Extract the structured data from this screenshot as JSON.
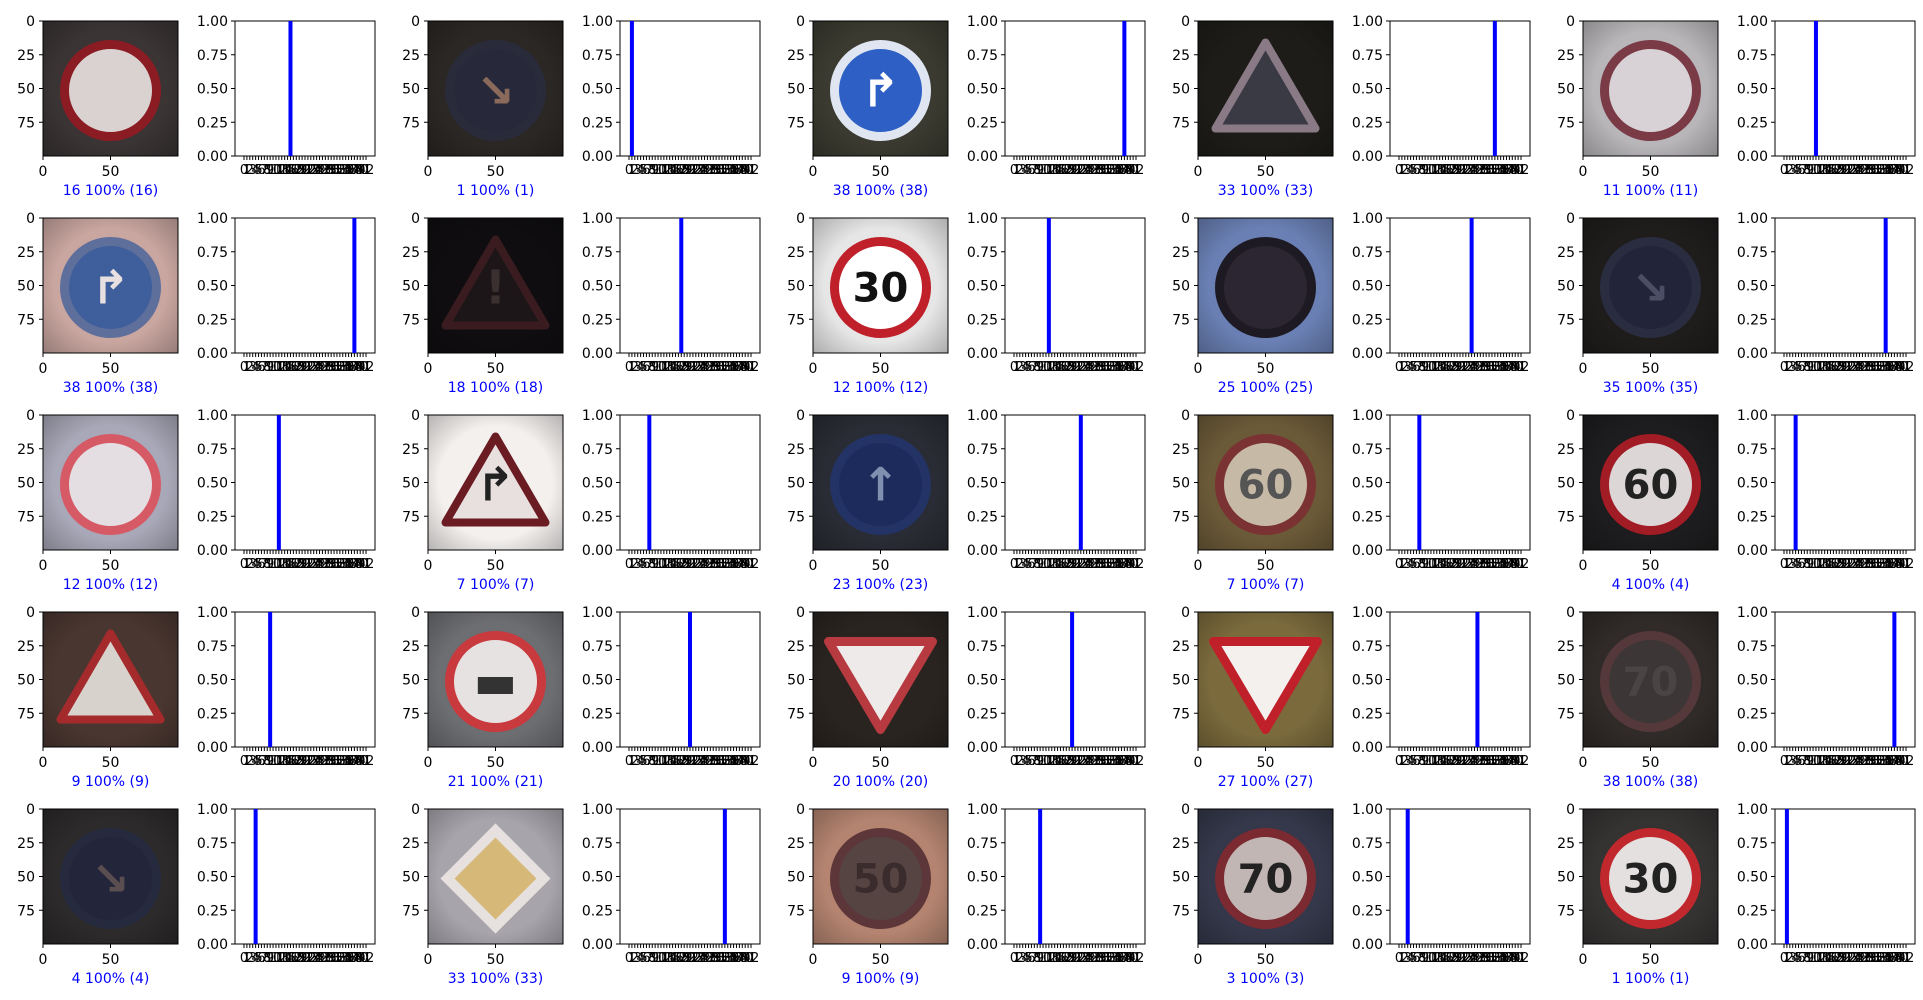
{
  "figure": {
    "rows": 5,
    "cols": 5
  },
  "chart_data": {
    "type": "bar",
    "num_classes": 43,
    "image_axes": {
      "x_ticks": [
        0,
        50
      ],
      "y_ticks": [
        0,
        25,
        50,
        75
      ],
      "xlim": [
        0,
        100
      ],
      "ylim": [
        100,
        0
      ]
    },
    "bar_axes": {
      "ylim": [
        0,
        1
      ],
      "y_ticks": [
        "0.00",
        "0.25",
        "0.50",
        "0.75",
        "1.00"
      ],
      "x_ticks": [
        0,
        1,
        2,
        3,
        4,
        5,
        6,
        7,
        8,
        9,
        10,
        11,
        12,
        13,
        14,
        15,
        16,
        17,
        18,
        19,
        20,
        21,
        22,
        23,
        24,
        25,
        26,
        27,
        28,
        29,
        30,
        31,
        32,
        33,
        34,
        35,
        36,
        37,
        38,
        39,
        40,
        41,
        42
      ],
      "bar_color": "#0000ff"
    },
    "panels": [
      {
        "predicted": 16,
        "true": 16,
        "confidence": 1.0,
        "caption": "16 100% (16)",
        "sign": {
          "shape": "circle",
          "bg": "#3a3434",
          "fill": "#d9d2d0",
          "border": "#8c1c24",
          "symbol": "",
          "symbol_color": "#777"
        }
      },
      {
        "predicted": 1,
        "true": 1,
        "confidence": 1.0,
        "caption": "1 100% (1)",
        "sign": {
          "shape": "circle",
          "bg": "#2b2724",
          "fill": "#27293a",
          "border": "#2a2b3a",
          "symbol": "↘",
          "symbol_color": "#8a6a5a"
        }
      },
      {
        "predicted": 38,
        "true": 38,
        "confidence": 1.0,
        "caption": "38 100% (38)",
        "sign": {
          "shape": "circle",
          "bg": "#3a3a30",
          "fill": "#2d5fc4",
          "border": "#dfe6f2",
          "symbol": "↱",
          "symbol_color": "#ffffff"
        }
      },
      {
        "predicted": 33,
        "true": 33,
        "confidence": 1.0,
        "caption": "33 100% (33)",
        "sign": {
          "shape": "triangle",
          "bg": "#1d1c18",
          "fill": "#3a3a44",
          "border": "#8a7a86",
          "symbol": "",
          "symbol_color": "#999"
        }
      },
      {
        "predicted": 11,
        "true": 11,
        "confidence": 1.0,
        "caption": "11 100% (11)",
        "sign": {
          "shape": "circle",
          "bg": "#b9b6ba",
          "fill": "#d8d2d6",
          "border": "#7a3a46",
          "symbol": "",
          "symbol_color": "#333"
        }
      },
      {
        "predicted": 38,
        "true": 38,
        "confidence": 1.0,
        "caption": "38 100% (38)",
        "sign": {
          "shape": "circle",
          "bg": "#c9a6a0",
          "fill": "#3f5f9c",
          "border": "#5f6f9c",
          "symbol": "↱",
          "symbol_color": "#e8e0e0"
        }
      },
      {
        "predicted": 18,
        "true": 18,
        "confidence": 1.0,
        "caption": "18 100% (18)",
        "sign": {
          "shape": "triangle",
          "bg": "#0f0d10",
          "fill": "#1c1618",
          "border": "#3a1c20",
          "symbol": "!",
          "symbol_color": "#3a3030"
        }
      },
      {
        "predicted": 12,
        "true": 12,
        "confidence": 1.0,
        "caption": "12 100% (12)",
        "sign": {
          "shape": "circle",
          "bg": "#e6e6e6",
          "fill": "#ffffff",
          "border": "#c0202a",
          "symbol": "30",
          "symbol_color": "#111111"
        }
      },
      {
        "predicted": 25,
        "true": 25,
        "confidence": 1.0,
        "caption": "25 100% (25)",
        "sign": {
          "shape": "circle",
          "bg": "#6a80b4",
          "fill": "#2c2632",
          "border": "#1e1a24",
          "symbol": "",
          "symbol_color": "#555"
        }
      },
      {
        "predicted": 35,
        "true": 35,
        "confidence": 1.0,
        "caption": "35 100% (35)",
        "sign": {
          "shape": "circle",
          "bg": "#1f1d1c",
          "fill": "#22253a",
          "border": "#2a2c40",
          "symbol": "↘",
          "symbol_color": "#4a4f66"
        }
      },
      {
        "predicted": 12,
        "true": 12,
        "confidence": 1.0,
        "caption": "12 100% (12)",
        "sign": {
          "shape": "circle",
          "bg": "#a8a8b8",
          "fill": "#e4dee2",
          "border": "#d65a66",
          "symbol": "",
          "symbol_color": "#999"
        }
      },
      {
        "predicted": 7,
        "true": 7,
        "confidence": 1.0,
        "caption": "7 100% (7)",
        "sign": {
          "shape": "triangle",
          "bg": "#f3f0ee",
          "fill": "#e8e0de",
          "border": "#6a1c22",
          "symbol": "↱",
          "symbol_color": "#222"
        }
      },
      {
        "predicted": 23,
        "true": 23,
        "confidence": 1.0,
        "caption": "23 100% (23)",
        "sign": {
          "shape": "circle",
          "bg": "#2a2c35",
          "fill": "#1d2b5c",
          "border": "#233366",
          "symbol": "↑",
          "symbol_color": "#7f8fb0"
        }
      },
      {
        "predicted": 7,
        "true": 7,
        "confidence": 1.0,
        "caption": "7 100% (7)",
        "sign": {
          "shape": "circle",
          "bg": "#6b5a38",
          "fill": "#c6b9a6",
          "border": "#7a3232",
          "symbol": "60",
          "symbol_color": "#555"
        }
      },
      {
        "predicted": 4,
        "true": 4,
        "confidence": 1.0,
        "caption": "4 100% (4)",
        "sign": {
          "shape": "circle",
          "bg": "#1d1c1e",
          "fill": "#ddd6d6",
          "border": "#a11c24",
          "symbol": "60",
          "symbol_color": "#222"
        }
      },
      {
        "predicted": 9,
        "true": 9,
        "confidence": 1.0,
        "caption": "9 100% (9)",
        "sign": {
          "shape": "triangle",
          "bg": "#4a3630",
          "fill": "#d8d2cc",
          "border": "#a42a2c",
          "symbol": "",
          "symbol_color": "#333"
        }
      },
      {
        "predicted": 21,
        "true": 21,
        "confidence": 1.0,
        "caption": "21 100% (21)",
        "sign": {
          "shape": "circle",
          "bg": "#6c6e72",
          "fill": "#e6e2e2",
          "border": "#c83a3e",
          "symbol": "▬",
          "symbol_color": "#333"
        }
      },
      {
        "predicted": 20,
        "true": 20,
        "confidence": 1.0,
        "caption": "20 100% (20)",
        "sign": {
          "shape": "inverted-triangle",
          "bg": "#2a2420",
          "fill": "#eeeaea",
          "border": "#b63a40",
          "symbol": "",
          "symbol_color": "#999"
        }
      },
      {
        "predicted": 27,
        "true": 27,
        "confidence": 1.0,
        "caption": "27 100% (27)",
        "sign": {
          "shape": "inverted-triangle",
          "bg": "#7a6a3c",
          "fill": "#f3f0ee",
          "border": "#c0202a",
          "symbol": "",
          "symbol_color": "#999"
        }
      },
      {
        "predicted": 38,
        "true": 38,
        "confidence": 1.0,
        "caption": "38 100% (38)",
        "sign": {
          "shape": "circle",
          "bg": "#302a28",
          "fill": "#3d3636",
          "border": "#55383a",
          "symbol": "70",
          "symbol_color": "#4a4444"
        }
      },
      {
        "predicted": 4,
        "true": 4,
        "confidence": 1.0,
        "caption": "4 100% (4)",
        "sign": {
          "shape": "circle",
          "bg": "#2c2a2a",
          "fill": "#23263a",
          "border": "#262a3e",
          "symbol": "↘",
          "symbol_color": "#5a4e50"
        }
      },
      {
        "predicted": 33,
        "true": 33,
        "confidence": 1.0,
        "caption": "33 100% (33)",
        "sign": {
          "shape": "diamond",
          "bg": "#a8a4ac",
          "fill": "#cfc4b8",
          "border": "#e6e0de",
          "symbol": "",
          "symbol_color": "#d6b878"
        }
      },
      {
        "predicted": 9,
        "true": 9,
        "confidence": 1.0,
        "caption": "9 100% (9)",
        "sign": {
          "shape": "circle",
          "bg": "#b48470",
          "fill": "#564442",
          "border": "#5c3638",
          "symbol": "50",
          "symbol_color": "#3a2c2c"
        }
      },
      {
        "predicted": 3,
        "true": 3,
        "confidence": 1.0,
        "caption": "3 100% (3)",
        "sign": {
          "shape": "circle",
          "bg": "#34384a",
          "fill": "#c2b6b4",
          "border": "#7a2a30",
          "symbol": "70",
          "symbol_color": "#222"
        }
      },
      {
        "predicted": 1,
        "true": 1,
        "confidence": 1.0,
        "caption": "1 100% (1)",
        "sign": {
          "shape": "circle",
          "bg": "#353232",
          "fill": "#e4e0e0",
          "border": "#c0282e",
          "symbol": "30",
          "symbol_color": "#222"
        }
      }
    ]
  }
}
